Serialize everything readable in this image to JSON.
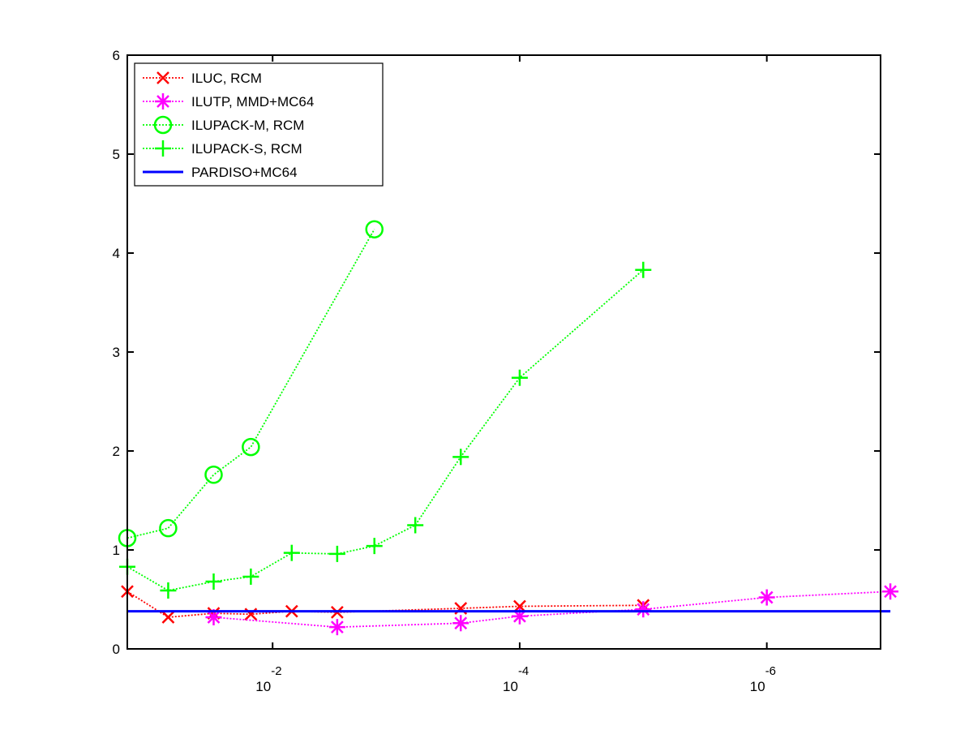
{
  "chart_data": {
    "type": "line",
    "x_axis": {
      "scale": "log",
      "reversed": true,
      "lim": [
        0.15,
        1.2e-07
      ],
      "ticks": [
        {
          "value": 0.01,
          "base": "10",
          "exponent": "-2"
        },
        {
          "value": 0.0001,
          "base": "10",
          "exponent": "-4"
        },
        {
          "value": 1e-06,
          "base": "10",
          "exponent": "-6"
        }
      ]
    },
    "y_axis": {
      "lim": [
        0,
        6
      ],
      "ticks": [
        0,
        1,
        2,
        3,
        4,
        5,
        6
      ],
      "tick_labels": [
        "0",
        "1",
        "2",
        "3",
        "4",
        "5",
        "6"
      ]
    },
    "grid": false,
    "legend_position": "top-left",
    "series": [
      {
        "name": "ILUC, RCM",
        "color": "#ff0000",
        "line": "dotted",
        "marker": "x",
        "x": [
          0.15,
          0.07,
          0.03,
          0.015,
          0.007,
          0.003,
          0.0003,
          0.0001,
          1e-05
        ],
        "y": [
          0.58,
          0.32,
          0.36,
          0.35,
          0.38,
          0.37,
          0.41,
          0.43,
          0.44
        ]
      },
      {
        "name": "ILUTP, MMD+MC64",
        "color": "#ff00ff",
        "line": "dotted",
        "marker": "asterisk",
        "x": [
          0.03,
          0.003,
          0.0003,
          0.0001,
          1e-05,
          1e-06,
          1e-07
        ],
        "y": [
          0.32,
          0.22,
          0.26,
          0.33,
          0.4,
          0.52,
          0.58
        ]
      },
      {
        "name": "ILUPACK-M, RCM",
        "color": "#00ff00",
        "line": "dotted",
        "marker": "circle",
        "x": [
          0.15,
          0.07,
          0.03,
          0.015,
          0.0015
        ],
        "y": [
          1.12,
          1.22,
          1.76,
          2.04,
          4.24
        ]
      },
      {
        "name": "ILUPACK-S, RCM",
        "color": "#00ff00",
        "line": "dotted",
        "marker": "plus",
        "x": [
          0.15,
          0.07,
          0.03,
          0.015,
          0.007,
          0.003,
          0.0015,
          0.0007,
          0.0003,
          0.0001,
          1e-05
        ],
        "y": [
          0.83,
          0.59,
          0.68,
          0.73,
          0.97,
          0.96,
          1.04,
          1.25,
          1.94,
          2.74,
          3.83
        ]
      },
      {
        "name": "PARDISO+MC64",
        "color": "#0000ff",
        "line": "solid",
        "marker": "none",
        "x": [
          0.15,
          1e-07
        ],
        "y": [
          0.38,
          0.38
        ]
      }
    ]
  }
}
